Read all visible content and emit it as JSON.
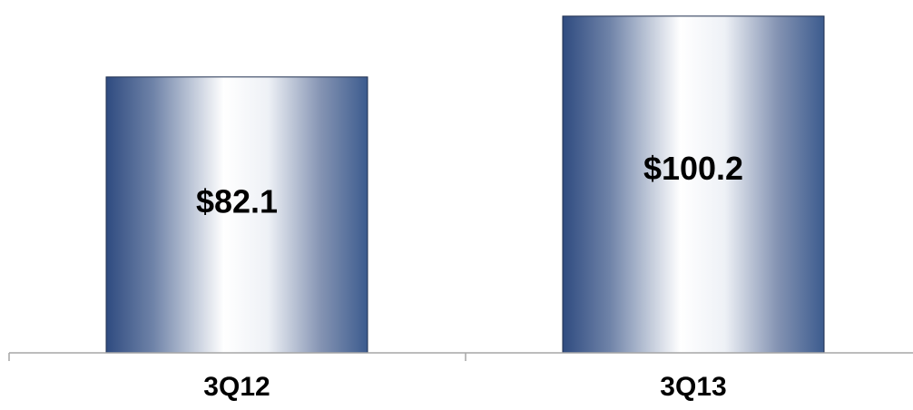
{
  "chart_data": {
    "type": "bar",
    "categories": [
      "3Q12",
      "3Q13"
    ],
    "values": [
      82.1,
      100.2
    ],
    "data_labels": [
      "$82.1",
      "$100.2"
    ],
    "title": "",
    "xlabel": "",
    "ylabel": "",
    "ylim": [
      0,
      105
    ],
    "grid": false,
    "legend": "none",
    "colors": {
      "bar_edge": "#2F4B80",
      "bar_mid": "#FFFFFF",
      "bar_dark": "#3C5B8E",
      "axis": "#A6A6A6",
      "text": "#000000"
    }
  }
}
